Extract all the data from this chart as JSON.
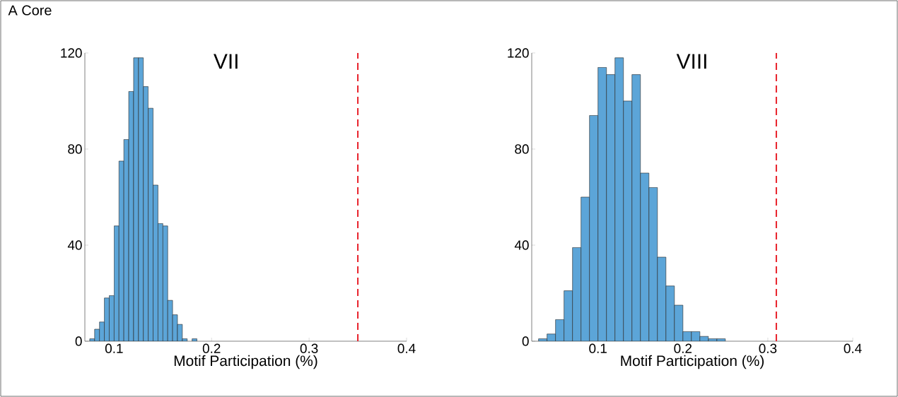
{
  "chart_data": [
    {
      "type": "histogram",
      "title": "VII",
      "xlabel": "Motif Participation (%)",
      "annotations": [
        "A Core"
      ],
      "color": "#5ca5d8",
      "bins": [
        0.075,
        0.08,
        0.085,
        0.09,
        0.095,
        0.1,
        0.105,
        0.11,
        0.115,
        0.12,
        0.125,
        0.13,
        0.135,
        0.14,
        0.145,
        0.15,
        0.155,
        0.16,
        0.165,
        0.17,
        0.175,
        0.18,
        0.185
      ],
      "values": [
        1,
        5,
        8,
        18,
        19,
        48,
        75,
        84,
        104,
        118,
        118,
        106,
        97,
        65,
        49,
        48,
        17,
        11,
        7,
        1,
        0,
        1
      ],
      "xlim": [
        0.07,
        0.4
      ],
      "xticks": [
        0.1,
        0.2,
        0.3,
        0.4
      ],
      "ylim": [
        0,
        120
      ],
      "yticks": [
        0,
        40,
        80,
        120
      ],
      "ref_lines": [
        {
          "axis": "x",
          "value": 0.35,
          "color": "#e8202a",
          "line_style": "dashed"
        }
      ]
    },
    {
      "type": "histogram",
      "title": "VIII",
      "xlabel": "Motif Participation (%)",
      "color": "#5ca5d8",
      "bins": [
        0.03,
        0.04,
        0.05,
        0.06,
        0.07,
        0.08,
        0.09,
        0.1,
        0.11,
        0.12,
        0.13,
        0.14,
        0.15,
        0.16,
        0.17,
        0.18,
        0.19,
        0.2,
        0.21,
        0.22,
        0.23,
        0.24,
        0.25
      ],
      "values": [
        1,
        3,
        9,
        21,
        39,
        60,
        94,
        114,
        111,
        118,
        100,
        111,
        70,
        64,
        35,
        23,
        15,
        4,
        4,
        2,
        1,
        1
      ],
      "xlim": [
        0.022,
        0.4
      ],
      "xticks": [
        0.1,
        0.2,
        0.3,
        0.4
      ],
      "ylim": [
        0,
        120
      ],
      "yticks": [
        0,
        40,
        80,
        120
      ],
      "ref_lines": [
        {
          "axis": "x",
          "value": 0.31,
          "color": "#e8202a",
          "line_style": "dashed"
        }
      ]
    }
  ]
}
